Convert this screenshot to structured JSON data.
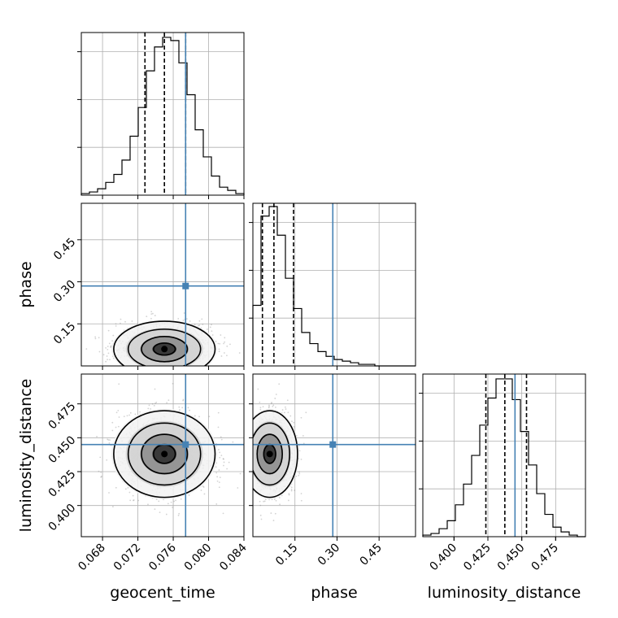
{
  "chart_data": {
    "type": "corner",
    "parameters": [
      "geocent_time",
      "phase",
      "luminosity_distance"
    ],
    "truths": {
      "geocent_time": 0.0774,
      "phase": 0.285,
      "luminosity_distance": 0.445
    },
    "ranges": {
      "geocent_time": [
        0.0656,
        0.084
      ],
      "phase": [
        0.0,
        0.58
      ],
      "luminosity_distance": [
        0.377,
        0.497
      ]
    },
    "ticks": {
      "geocent_time": [
        "0.068",
        "0.072",
        "0.076",
        "0.080",
        "0.084"
      ],
      "phase": [
        "0.15",
        "0.30",
        "0.45"
      ],
      "luminosity_distance": [
        "0.400",
        "0.425",
        "0.450",
        "0.475"
      ]
    },
    "quantiles": {
      "geocent_time": [
        0.0728,
        0.075,
        0.0774
      ],
      "phase": [
        0.034,
        0.075,
        0.145
      ],
      "luminosity_distance": [
        0.4235,
        0.4375,
        0.4535
      ]
    },
    "histograms": {
      "geocent_time": [
        0.01,
        0.02,
        0.04,
        0.08,
        0.13,
        0.22,
        0.37,
        0.55,
        0.78,
        0.93,
        0.99,
        0.97,
        0.83,
        0.63,
        0.41,
        0.24,
        0.12,
        0.05,
        0.03,
        0.01
      ],
      "phase": [
        0.38,
        0.94,
        1.0,
        0.82,
        0.55,
        0.36,
        0.21,
        0.14,
        0.09,
        0.06,
        0.04,
        0.03,
        0.02,
        0.01,
        0.01,
        0.0,
        0.0,
        0.0,
        0.0,
        0.0
      ],
      "luminosity_distance": [
        0.01,
        0.02,
        0.05,
        0.1,
        0.2,
        0.33,
        0.51,
        0.7,
        0.87,
        0.99,
        0.99,
        0.86,
        0.66,
        0.45,
        0.27,
        0.14,
        0.06,
        0.03,
        0.01,
        0.0
      ]
    },
    "means": {
      "geocent_time": 0.075,
      "phase": 0.075,
      "luminosity_distance": 0.438
    },
    "sigmas": {
      "geocent_time": 0.0026,
      "phase": 0.045,
      "luminosity_distance": 0.0145
    },
    "axis_labels": {
      "x": [
        "geocent_time",
        "phase",
        "luminosity_distance"
      ],
      "y": [
        "phase",
        "luminosity_distance"
      ]
    },
    "grid": true,
    "colors": {
      "truth": "#4682b4",
      "hist": "#000000",
      "scatter": "#808080"
    }
  }
}
